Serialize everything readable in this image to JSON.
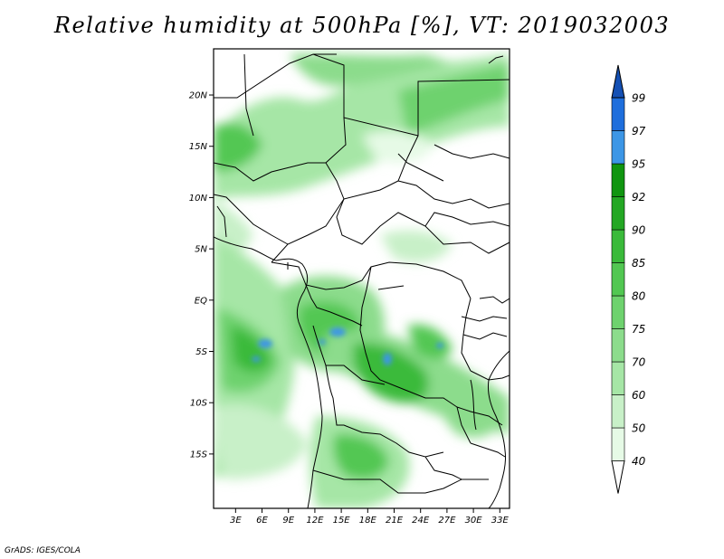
{
  "title": "Relative humidity at 500hPa [%], VT: 2019032003",
  "credit": "GrADS: IGES/COLA",
  "map": {
    "lat_ticks": [
      "20N",
      "15N",
      "10N",
      "5N",
      "EQ",
      "5S",
      "10S",
      "15S"
    ],
    "lon_ticks": [
      "3E",
      "6E",
      "9E",
      "12E",
      "15E",
      "18E",
      "21E",
      "24E",
      "27E",
      "30E",
      "33E"
    ]
  },
  "colorbar": {
    "labels": [
      "40",
      "50",
      "60",
      "70",
      "75",
      "80",
      "85",
      "90",
      "92",
      "95",
      "97",
      "99"
    ],
    "colors": [
      "#ffffff",
      "#e6fae6",
      "#c8f0c8",
      "#a6e6a6",
      "#8cdc8c",
      "#6ed26e",
      "#52c752",
      "#3aba3a",
      "#23a723",
      "#109510",
      "#3c96e6",
      "#1e6edc",
      "#1450b4"
    ]
  },
  "chart_data": {
    "type": "heatmap",
    "title": "Relative humidity at 500hPa [%], VT: 2019032003",
    "variable": "Relative humidity",
    "level": "500hPa",
    "units": "%",
    "valid_time": "2019032003",
    "contour_levels": [
      40,
      50,
      60,
      70,
      75,
      80,
      85,
      90,
      92,
      95,
      97,
      99
    ],
    "lon_ticks": [
      "3E",
      "6E",
      "9E",
      "12E",
      "15E",
      "18E",
      "21E",
      "24E",
      "27E",
      "30E",
      "33E"
    ],
    "lat_ticks": [
      "20N",
      "15N",
      "10N",
      "5N",
      "EQ",
      "5S",
      "10S",
      "15S"
    ],
    "regions_high_rh": [
      {
        "area": "Sahel band (approx 13-20N, 2-30E)",
        "approx_rh": 80
      },
      {
        "area": "Gulf of Guinea / Atlantic (approx 0-10S, 2-10E)",
        "approx_rh": 95
      },
      {
        "area": "Congo basin (approx 2-5S, 12-17E)",
        "approx_rh": 97
      },
      {
        "area": "Central Africa band (approx 4-10S, 18-27E)",
        "approx_rh": 95
      },
      {
        "area": "Angola / Zambia (approx 13-18S, 12-22E)",
        "approx_rh": 90
      }
    ],
    "grid": false,
    "legend": "right"
  }
}
